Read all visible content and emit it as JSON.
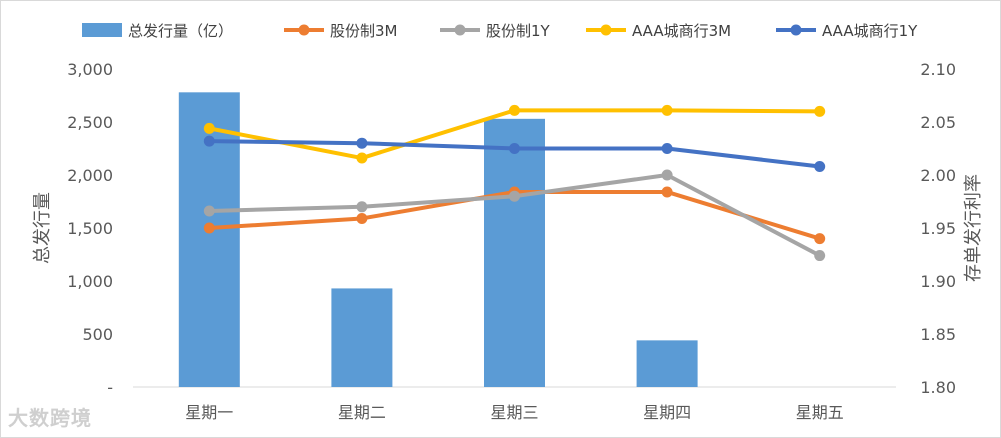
{
  "chart_data": {
    "type": "bar+line",
    "categories": [
      "星期一",
      "星期二",
      "星期三",
      "星期四",
      "星期五"
    ],
    "bar_series": {
      "name": "总发行量（亿）",
      "axis": "left",
      "color": "#5b9bd5",
      "values": [
        2780,
        930,
        2530,
        440,
        0
      ]
    },
    "line_series": [
      {
        "name": "股份制3M",
        "axis": "right",
        "color": "#ed7d31",
        "values": [
          1.95,
          1.959,
          1.984,
          1.984,
          1.94
        ]
      },
      {
        "name": "股份制1Y",
        "axis": "right",
        "color": "#a5a5a5",
        "values": [
          1.966,
          1.97,
          1.98,
          2.0,
          1.924
        ]
      },
      {
        "name": "AAA城商行3M",
        "axis": "right",
        "color": "#ffc000",
        "values": [
          2.044,
          2.016,
          2.061,
          2.061,
          2.06
        ]
      },
      {
        "name": "AAA城商行1Y",
        "axis": "right",
        "color": "#4472c4",
        "values": [
          2.032,
          2.03,
          2.025,
          2.025,
          2.008
        ]
      }
    ],
    "y_left": {
      "label": "总发行量",
      "range": [
        0,
        3000
      ],
      "ticks": [
        0,
        500,
        1000,
        1500,
        2000,
        2500,
        3000
      ],
      "tick_labels": [
        "-",
        "500",
        "1,000",
        "1,500",
        "2,000",
        "2,500",
        "3,000"
      ]
    },
    "y_right": {
      "label": "存单发行利率",
      "range": [
        1.8,
        2.1
      ],
      "ticks": [
        1.8,
        1.85,
        1.9,
        1.95,
        2.0,
        2.05,
        2.1
      ],
      "tick_labels": [
        "1.80",
        "1.85",
        "1.90",
        "1.95",
        "2.00",
        "2.05",
        "2.10"
      ]
    },
    "legend_position": "top",
    "grid": false
  },
  "watermark": "大数跨境"
}
